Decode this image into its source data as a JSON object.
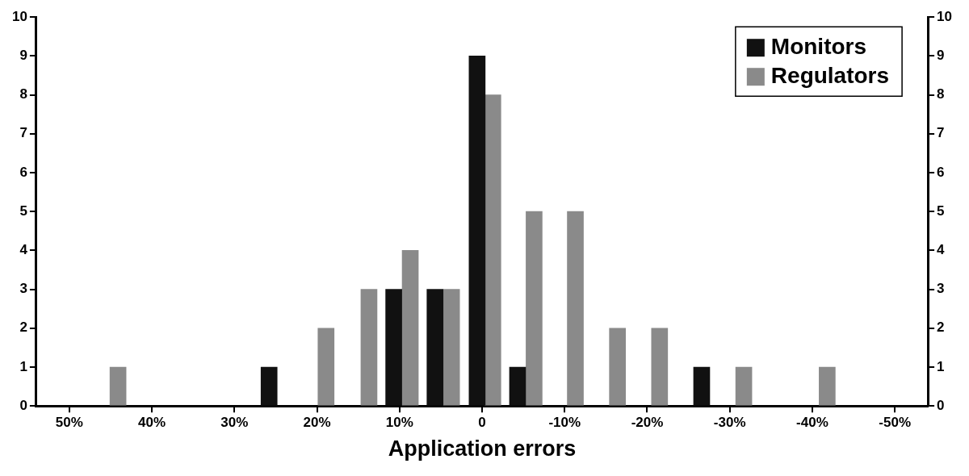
{
  "chart_data": {
    "type": "bar",
    "xlabel": "Application errors",
    "xlim": [
      54,
      -54
    ],
    "xticks": [
      {
        "value": 50,
        "label": "50%"
      },
      {
        "value": 40,
        "label": "40%"
      },
      {
        "value": 30,
        "label": "30%"
      },
      {
        "value": 20,
        "label": "20%"
      },
      {
        "value": 10,
        "label": "10%"
      },
      0,
      {
        "value": -10,
        "label": "-10%"
      },
      {
        "value": -20,
        "label": "-20%"
      },
      {
        "value": -30,
        "label": "-30%"
      },
      {
        "value": -40,
        "label": "-40%"
      },
      {
        "value": -50,
        "label": "-50%"
      }
    ],
    "ylim": [
      0,
      10
    ],
    "yticks": [
      0,
      1,
      2,
      3,
      4,
      5,
      6,
      7,
      8,
      9,
      10
    ],
    "y2lim": [
      0,
      10
    ],
    "y2ticks": [
      0,
      1,
      2,
      3,
      4,
      5,
      6,
      7,
      8,
      9,
      10
    ],
    "grid": false,
    "legend": "top right",
    "series": [
      {
        "name": "Monitors",
        "color": "#111111",
        "x": [
          25.8,
          10.7,
          5.7,
          0.6,
          -4.3,
          -26.6
        ],
        "values": [
          1,
          3,
          3,
          9,
          1,
          1
        ]
      },
      {
        "name": "Regulators",
        "color": "#8a8a8a",
        "x": [
          44.1,
          18.9,
          13.7,
          8.7,
          3.7,
          -1.3,
          -6.3,
          -11.3,
          -16.4,
          -21.5,
          -31.7,
          -41.8
        ],
        "values": [
          1,
          2,
          3,
          4,
          3,
          8,
          5,
          5,
          2,
          2,
          1,
          1
        ]
      }
    ]
  }
}
